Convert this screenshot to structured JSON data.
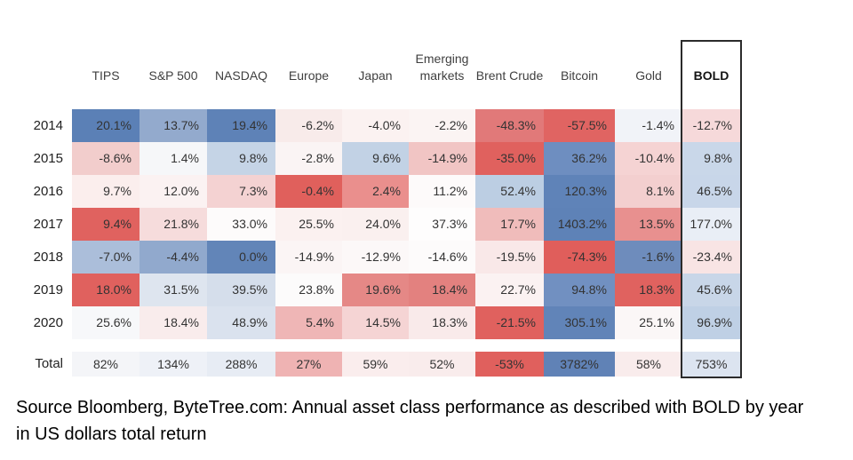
{
  "caption": "Source Bloomberg, ByteTree.com: Annual asset class performance as described with BOLD by year in US dollars total return",
  "colors": {
    "strong_positive_blue": "#5e82b7",
    "strong_negative_red": "#e0605c",
    "outline_black": "#2b2b2b",
    "background": "#ffffff"
  },
  "table": {
    "columns": [
      "TIPS",
      "S&P 500",
      "NASDAQ",
      "Europe",
      "Japan",
      "Emerging markets",
      "Brent Crude",
      "Bitcoin",
      "Gold",
      "BOLD"
    ],
    "highlighted_column": "BOLD",
    "rows": [
      {
        "label": "2014",
        "cells": [
          {
            "value": "20.1%",
            "color": "#5b80b6"
          },
          {
            "value": "13.7%",
            "color": "#93aacd"
          },
          {
            "value": "19.4%",
            "color": "#5e82b7"
          },
          {
            "value": "-6.2%",
            "color": "#f8ebea"
          },
          {
            "value": "-4.0%",
            "color": "#fbf2f1"
          },
          {
            "value": "-2.2%",
            "color": "#fbf4f3"
          },
          {
            "value": "-48.3%",
            "color": "#e17979"
          },
          {
            "value": "-57.5%",
            "color": "#e06462"
          },
          {
            "value": "-1.4%",
            "color": "#f1f3f8"
          },
          {
            "value": "-12.7%",
            "color": "#f6d9da"
          }
        ]
      },
      {
        "label": "2015",
        "cells": [
          {
            "value": "-8.6%",
            "color": "#f2cdcc"
          },
          {
            "value": "1.4%",
            "color": "#f6f7f9"
          },
          {
            "value": "9.8%",
            "color": "#c5d4e6"
          },
          {
            "value": "-2.8%",
            "color": "#faf4f4"
          },
          {
            "value": "9.6%",
            "color": "#c2d2e5"
          },
          {
            "value": "-14.9%",
            "color": "#f1c5c4"
          },
          {
            "value": "-35.0%",
            "color": "#e0615e"
          },
          {
            "value": "36.2%",
            "color": "#6e8ec0"
          },
          {
            "value": "-10.4%",
            "color": "#f5d3d3"
          },
          {
            "value": "9.8%",
            "color": "#c9d7e9"
          }
        ]
      },
      {
        "label": "2016",
        "cells": [
          {
            "value": "9.7%",
            "color": "#fbeeed"
          },
          {
            "value": "12.0%",
            "color": "#fbf2f2"
          },
          {
            "value": "7.3%",
            "color": "#f4d2d2"
          },
          {
            "value": "-0.4%",
            "color": "#e0605c"
          },
          {
            "value": "2.4%",
            "color": "#ea8f8d"
          },
          {
            "value": "11.2%",
            "color": "#fdfafa"
          },
          {
            "value": "52.4%",
            "color": "#bccee3"
          },
          {
            "value": "120.3%",
            "color": "#5f83b8"
          },
          {
            "value": "8.1%",
            "color": "#f3cfcf"
          },
          {
            "value": "46.5%",
            "color": "#c8d6e9"
          }
        ]
      },
      {
        "label": "2017",
        "cells": [
          {
            "value": "9.4%",
            "color": "#e0625f"
          },
          {
            "value": "21.8%",
            "color": "#f6dcdc"
          },
          {
            "value": "33.0%",
            "color": "#fdfbfb"
          },
          {
            "value": "25.5%",
            "color": "#fbf1f0"
          },
          {
            "value": "24.0%",
            "color": "#faf0ef"
          },
          {
            "value": "37.3%",
            "color": "#fefdfd"
          },
          {
            "value": "17.7%",
            "color": "#f0bcbb"
          },
          {
            "value": "1403.2%",
            "color": "#5e82b7"
          },
          {
            "value": "13.5%",
            "color": "#e8908f"
          },
          {
            "value": "177.0%",
            "color": "#e9eef6"
          }
        ]
      },
      {
        "label": "2018",
        "cells": [
          {
            "value": "-7.0%",
            "color": "#abbeda"
          },
          {
            "value": "-4.4%",
            "color": "#91a9cd"
          },
          {
            "value": "0.0%",
            "color": "#6285b8"
          },
          {
            "value": "-14.9%",
            "color": "#fbf5f5"
          },
          {
            "value": "-12.9%",
            "color": "#fcf8f8"
          },
          {
            "value": "-14.6%",
            "color": "#fdfbfb"
          },
          {
            "value": "-19.5%",
            "color": "#f9e8e8"
          },
          {
            "value": "-74.3%",
            "color": "#e05e5b"
          },
          {
            "value": "-1.6%",
            "color": "#6e8cbc"
          },
          {
            "value": "-23.4%",
            "color": "#f8e4e4"
          }
        ]
      },
      {
        "label": "2019",
        "cells": [
          {
            "value": "18.0%",
            "color": "#e0615e"
          },
          {
            "value": "31.5%",
            "color": "#dee5ef"
          },
          {
            "value": "39.5%",
            "color": "#d5deeb"
          },
          {
            "value": "23.8%",
            "color": "#fcfbfb"
          },
          {
            "value": "19.6%",
            "color": "#e58886"
          },
          {
            "value": "18.4%",
            "color": "#e3817f"
          },
          {
            "value": "22.7%",
            "color": "#fbf2f2"
          },
          {
            "value": "94.8%",
            "color": "#7190c1"
          },
          {
            "value": "18.3%",
            "color": "#e0625f"
          },
          {
            "value": "45.6%",
            "color": "#c8d6e8"
          }
        ]
      },
      {
        "label": "2020",
        "cells": [
          {
            "value": "25.6%",
            "color": "#f7f8fa"
          },
          {
            "value": "18.4%",
            "color": "#f9ecec"
          },
          {
            "value": "48.9%",
            "color": "#dae2ee"
          },
          {
            "value": "5.4%",
            "color": "#efb6b6"
          },
          {
            "value": "14.5%",
            "color": "#f5d4d4"
          },
          {
            "value": "18.3%",
            "color": "#f9eaea"
          },
          {
            "value": "-21.5%",
            "color": "#e0615e"
          },
          {
            "value": "305.1%",
            "color": "#6184b8"
          },
          {
            "value": "25.1%",
            "color": "#fbf7f7"
          },
          {
            "value": "96.9%",
            "color": "#bfd0e5"
          }
        ]
      },
      {
        "label": "Total",
        "cells": [
          {
            "value": "82%",
            "color": "#f4f5f8"
          },
          {
            "value": "134%",
            "color": "#eef1f7"
          },
          {
            "value": "288%",
            "color": "#e7ecf4"
          },
          {
            "value": "27%",
            "color": "#efb3b3"
          },
          {
            "value": "59%",
            "color": "#faeded"
          },
          {
            "value": "52%",
            "color": "#f9ecec"
          },
          {
            "value": "-53%",
            "color": "#e0605d"
          },
          {
            "value": "3782%",
            "color": "#6082b6"
          },
          {
            "value": "58%",
            "color": "#f9ecec"
          },
          {
            "value": "753%",
            "color": "#dce4f0"
          }
        ]
      }
    ]
  },
  "chart_data": {
    "type": "heatmap",
    "title": "Annual asset class performance",
    "columns": [
      "TIPS",
      "S&P 500",
      "NASDAQ",
      "Europe",
      "Japan",
      "Emerging markets",
      "Brent Crude",
      "Bitcoin",
      "Gold",
      "BOLD"
    ],
    "rows": [
      "2014",
      "2015",
      "2016",
      "2017",
      "2018",
      "2019",
      "2020",
      "Total"
    ],
    "values_pct": [
      [
        20.1,
        13.7,
        19.4,
        -6.2,
        -4.0,
        -2.2,
        -48.3,
        -57.5,
        -1.4,
        -12.7
      ],
      [
        -8.6,
        1.4,
        9.8,
        -2.8,
        9.6,
        -14.9,
        -35.0,
        36.2,
        -10.4,
        9.8
      ],
      [
        9.7,
        12.0,
        7.3,
        -0.4,
        2.4,
        11.2,
        52.4,
        120.3,
        8.1,
        46.5
      ],
      [
        9.4,
        21.8,
        33.0,
        25.5,
        24.0,
        37.3,
        17.7,
        1403.2,
        13.5,
        177.0
      ],
      [
        -7.0,
        -4.4,
        0.0,
        -14.9,
        -12.9,
        -14.6,
        -19.5,
        -74.3,
        -1.6,
        -23.4
      ],
      [
        18.0,
        31.5,
        39.5,
        23.8,
        19.6,
        18.4,
        22.7,
        94.8,
        18.3,
        45.6
      ],
      [
        25.6,
        18.4,
        48.9,
        5.4,
        14.5,
        18.3,
        -21.5,
        305.1,
        25.1,
        96.9
      ],
      [
        82,
        134,
        288,
        27,
        59,
        52,
        -53,
        3782,
        58,
        753
      ]
    ],
    "color_scale": "per-row relative: red (worst) to white to blue (best)",
    "highlighted_column": "BOLD",
    "legend_position": "none",
    "grid": false
  }
}
